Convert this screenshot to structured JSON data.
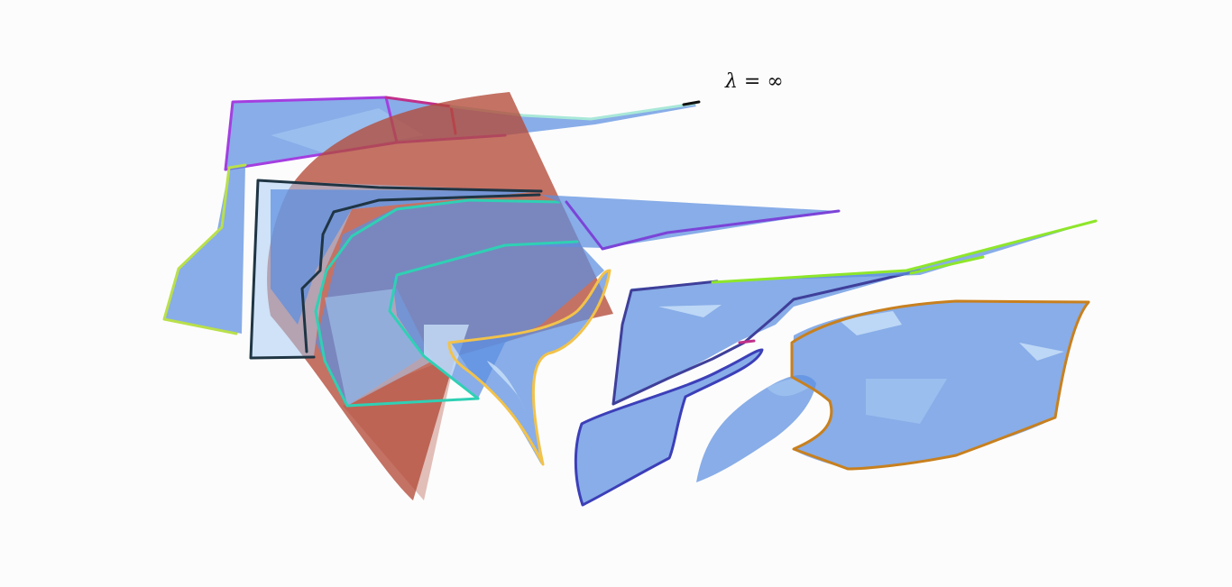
{
  "annotation": {
    "text": "λ = ∞"
  },
  "colors": {
    "surface_blue": "#5b8fe0",
    "surface_red": "#b34a38",
    "edge_purple": "#a43ee0",
    "edge_magenta": "#c0308a",
    "edge_mint": "#a8e8d8",
    "edge_lime": "#b9e04a",
    "edge_dark": "#1f3544",
    "edge_teal": "#2fd0b4",
    "edge_violet": "#7b44d8",
    "edge_yellow": "#f2c24a",
    "edge_navy": "#3c3fb8",
    "edge_green": "#8ee62a",
    "edge_orange": "#c8801e"
  }
}
